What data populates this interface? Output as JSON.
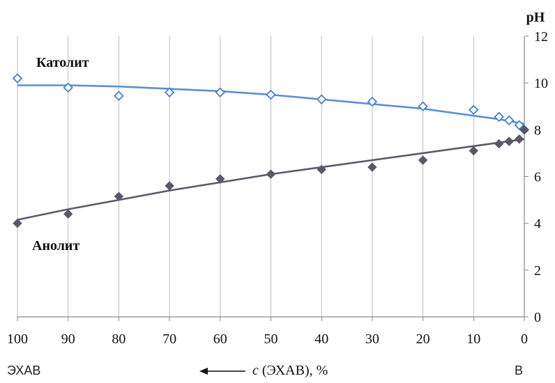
{
  "chart_data": {
    "type": "scatter",
    "title": "",
    "xlabel": "c (ЭХАВ), %",
    "xlabel_italic": "c",
    "xlabel_rest": " (ЭХАВ), %",
    "ylabel": "pH",
    "x_left_label": "ЭХАВ",
    "x_right_label": "В",
    "arrow": "←",
    "xlim": [
      100,
      0
    ],
    "ylim": [
      0,
      12
    ],
    "x_ticks": [
      100,
      90,
      80,
      70,
      60,
      50,
      40,
      30,
      20,
      10,
      0
    ],
    "y_ticks": [
      0,
      2,
      4,
      6,
      8,
      10,
      12
    ],
    "y_axis_side": "right",
    "grid": "vertical",
    "series": [
      {
        "name": "Католит",
        "marker": "open-diamond",
        "color": "#4a7ec4",
        "line_color": "#5b8fd6",
        "x": [
          100,
          90,
          80,
          70,
          60,
          50,
          40,
          30,
          20,
          10,
          5,
          3,
          1,
          0
        ],
        "y": [
          10.2,
          9.8,
          9.45,
          9.6,
          9.6,
          9.5,
          9.3,
          9.2,
          9.0,
          8.85,
          8.55,
          8.4,
          8.2,
          8.0
        ],
        "trend_x": [
          100,
          90,
          80,
          70,
          60,
          50,
          40,
          30,
          20,
          10,
          5,
          0
        ],
        "trend_y": [
          9.9,
          9.9,
          9.85,
          9.75,
          9.65,
          9.5,
          9.3,
          9.1,
          8.9,
          8.6,
          8.45,
          8.25
        ]
      },
      {
        "name": "Анолит",
        "marker": "filled-diamond",
        "color": "#585868",
        "line_color": "#5a5a6a",
        "x": [
          100,
          90,
          80,
          70,
          60,
          50,
          40,
          30,
          20,
          10,
          5,
          3,
          1,
          0
        ],
        "y": [
          4.0,
          4.4,
          5.15,
          5.6,
          5.9,
          6.1,
          6.3,
          6.4,
          6.7,
          7.1,
          7.4,
          7.5,
          7.6,
          8.0
        ],
        "trend_x": [
          100,
          90,
          80,
          70,
          60,
          50,
          40,
          30,
          20,
          10,
          5,
          0
        ],
        "trend_y": [
          4.15,
          4.6,
          5.0,
          5.4,
          5.75,
          6.1,
          6.4,
          6.7,
          7.0,
          7.3,
          7.45,
          7.6
        ]
      }
    ]
  }
}
